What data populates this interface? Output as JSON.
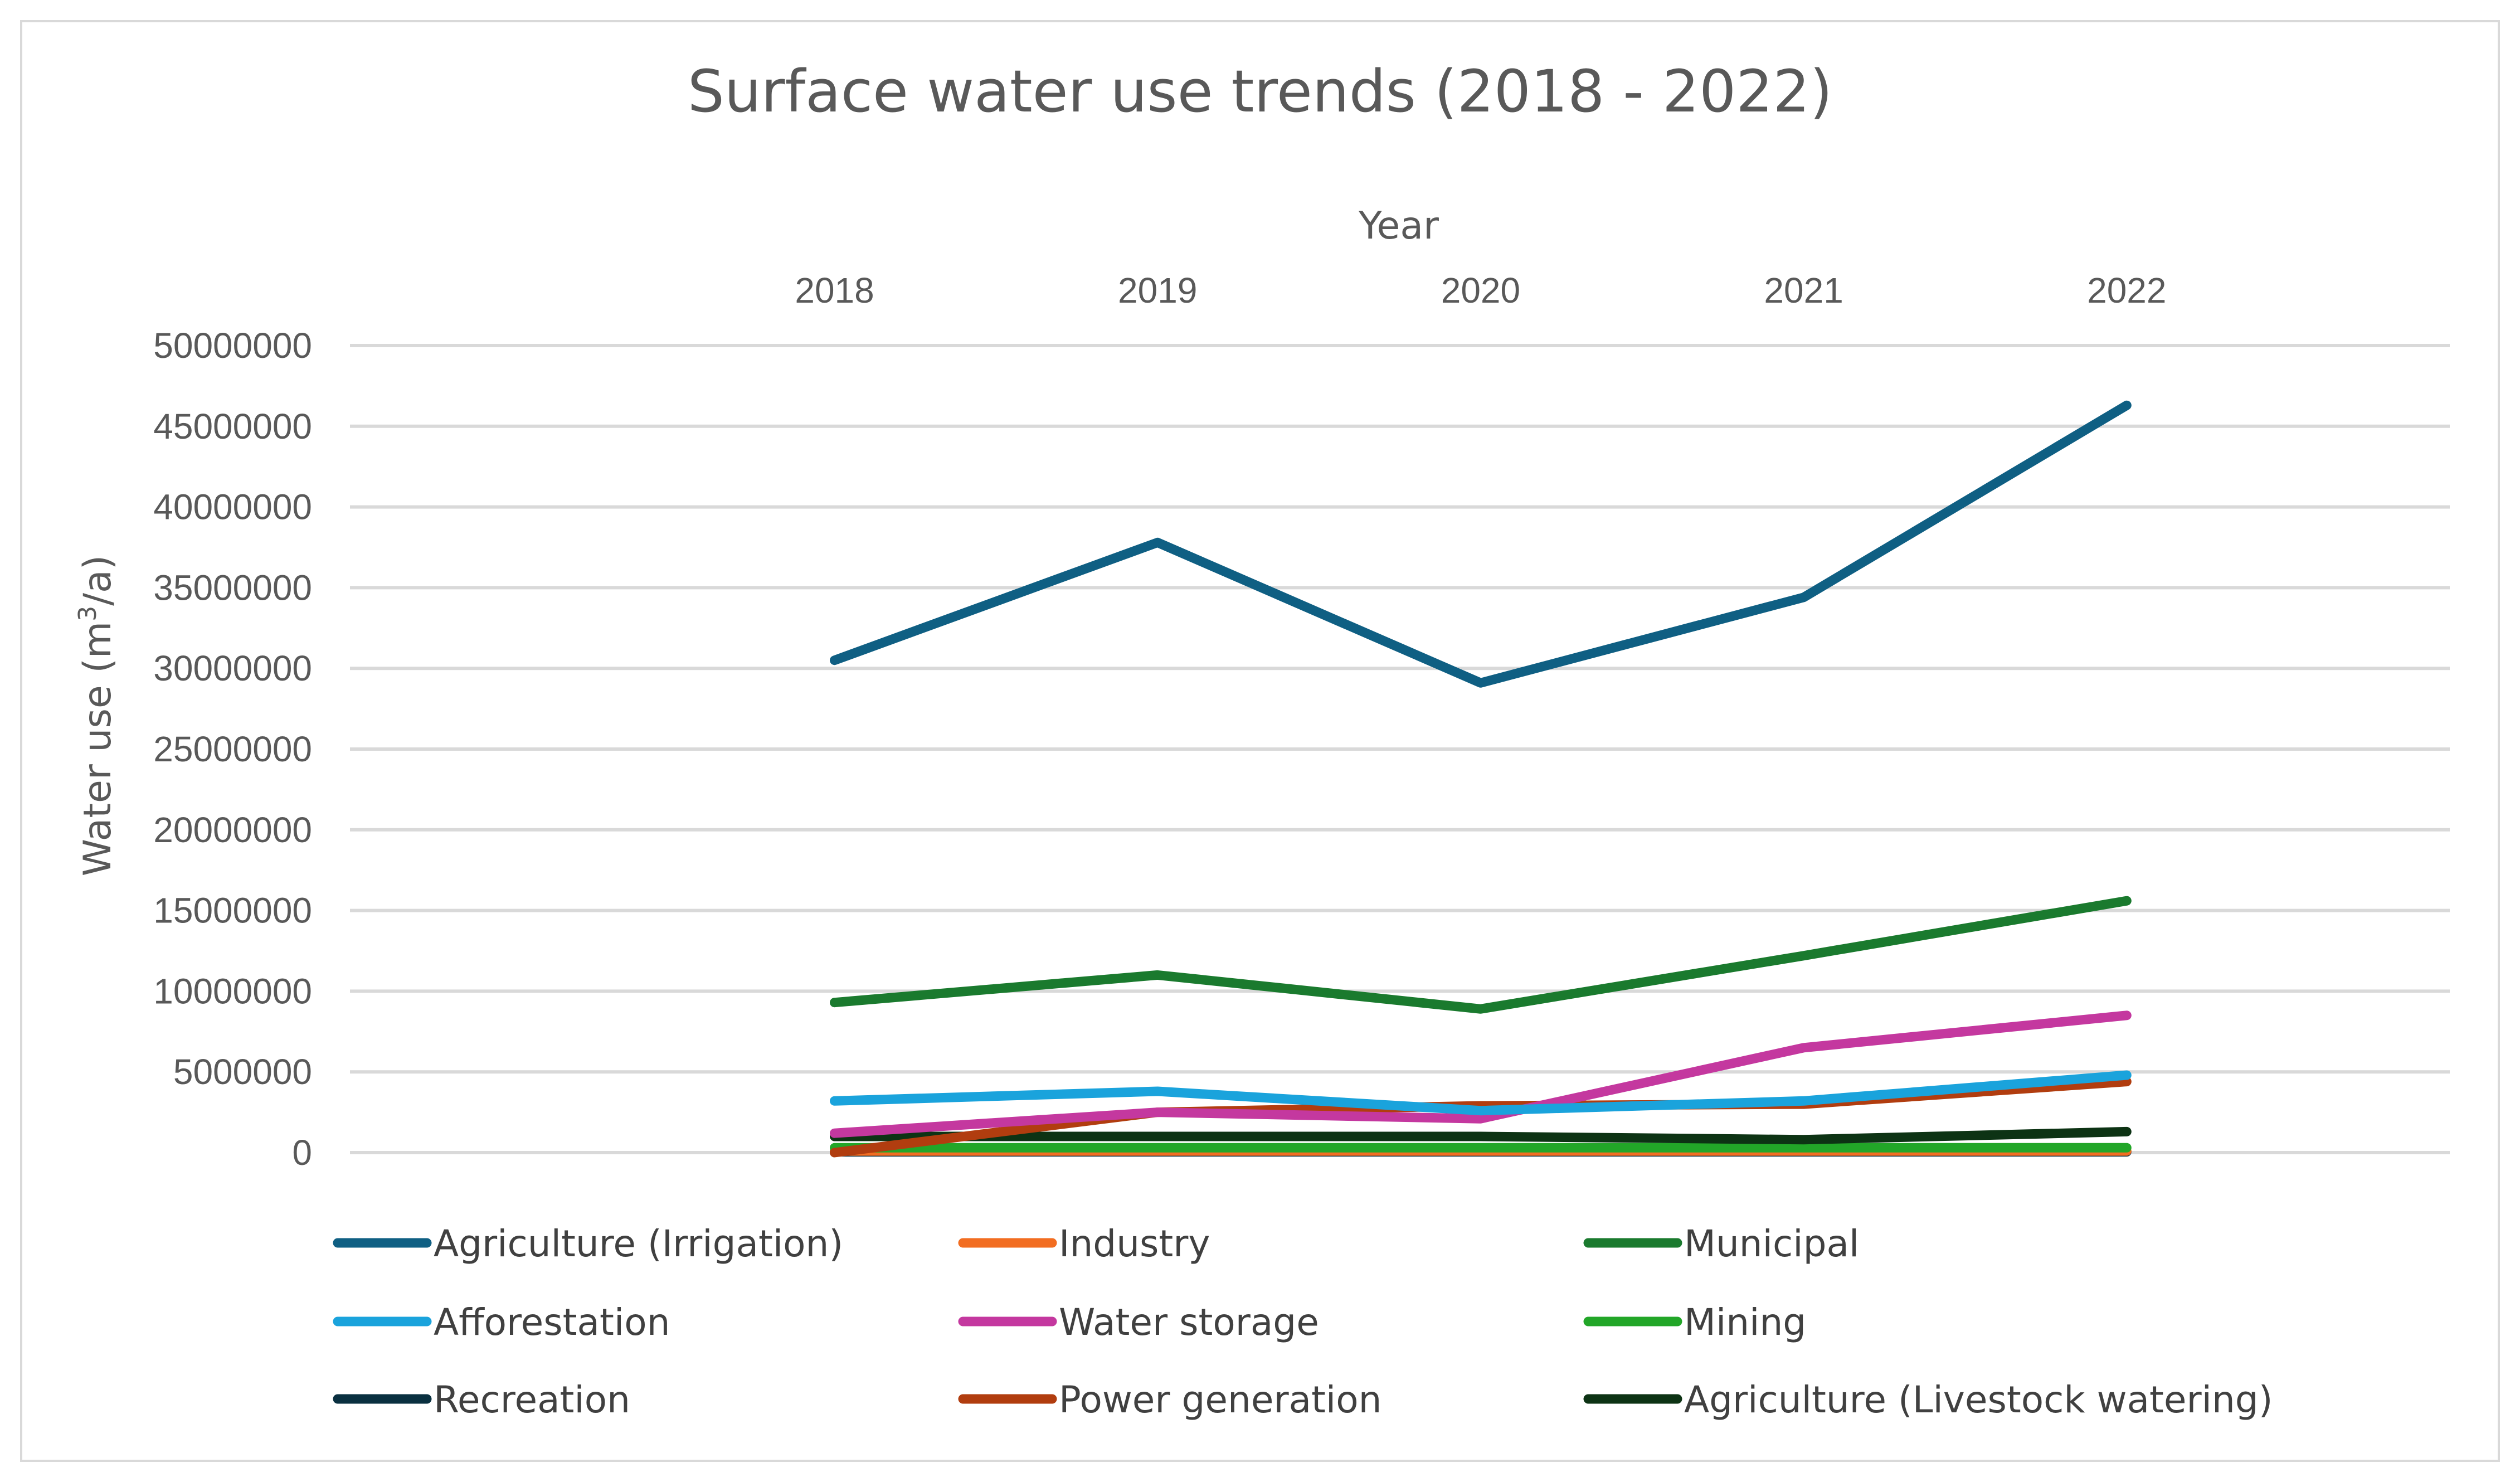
{
  "chart_data": {
    "type": "line",
    "title": "Surface water use trends (2018 - 2022)",
    "xlabel": "Year",
    "ylabel": "Water use (m³/a)",
    "ylabel_main": "Water use (m",
    "ylabel_sup": "3",
    "ylabel_tail": "/a)",
    "x_axis_position": "top",
    "categories": [
      "2018",
      "2019",
      "2020",
      "2021",
      "2022"
    ],
    "ylim": [
      0,
      50000000
    ],
    "yticks": [
      "50000000",
      "45000000",
      "40000000",
      "35000000",
      "30000000",
      "25000000",
      "20000000",
      "15000000",
      "10000000",
      "5000000",
      "0"
    ],
    "grid": true,
    "legend_position": "bottom",
    "series": [
      {
        "name": "Agriculture (Irrigation)",
        "color": "#0f5f83",
        "values": [
          30500000,
          37800000,
          29100000,
          34400000,
          46300000
        ]
      },
      {
        "name": "Industry",
        "color": "#f26d21",
        "values": [
          100000,
          100000,
          100000,
          100000,
          100000
        ]
      },
      {
        "name": "Municipal",
        "color": "#1a7a2e",
        "values": [
          9300000,
          11000000,
          8900000,
          12200000,
          15600000
        ]
      },
      {
        "name": "Afforestation",
        "color": "#1aa3dc",
        "values": [
          3200000,
          3800000,
          2600000,
          3200000,
          4800000
        ]
      },
      {
        "name": "Water storage",
        "color": "#c4389f",
        "values": [
          1200000,
          2500000,
          2100000,
          6500000,
          8500000
        ]
      },
      {
        "name": "Mining",
        "color": "#22a628",
        "values": [
          300000,
          300000,
          300000,
          300000,
          300000
        ]
      },
      {
        "name": "Recreation",
        "color": "#0a3040",
        "values": [
          50000,
          50000,
          50000,
          50000,
          50000
        ]
      },
      {
        "name": "Power generation",
        "color": "#b13d0f",
        "values": [
          0,
          2500000,
          2900000,
          3000000,
          4400000
        ]
      },
      {
        "name": "Agriculture (Livestock watering)",
        "color": "#0d3314",
        "values": [
          1000000,
          1000000,
          1000000,
          800000,
          1300000
        ]
      }
    ]
  }
}
